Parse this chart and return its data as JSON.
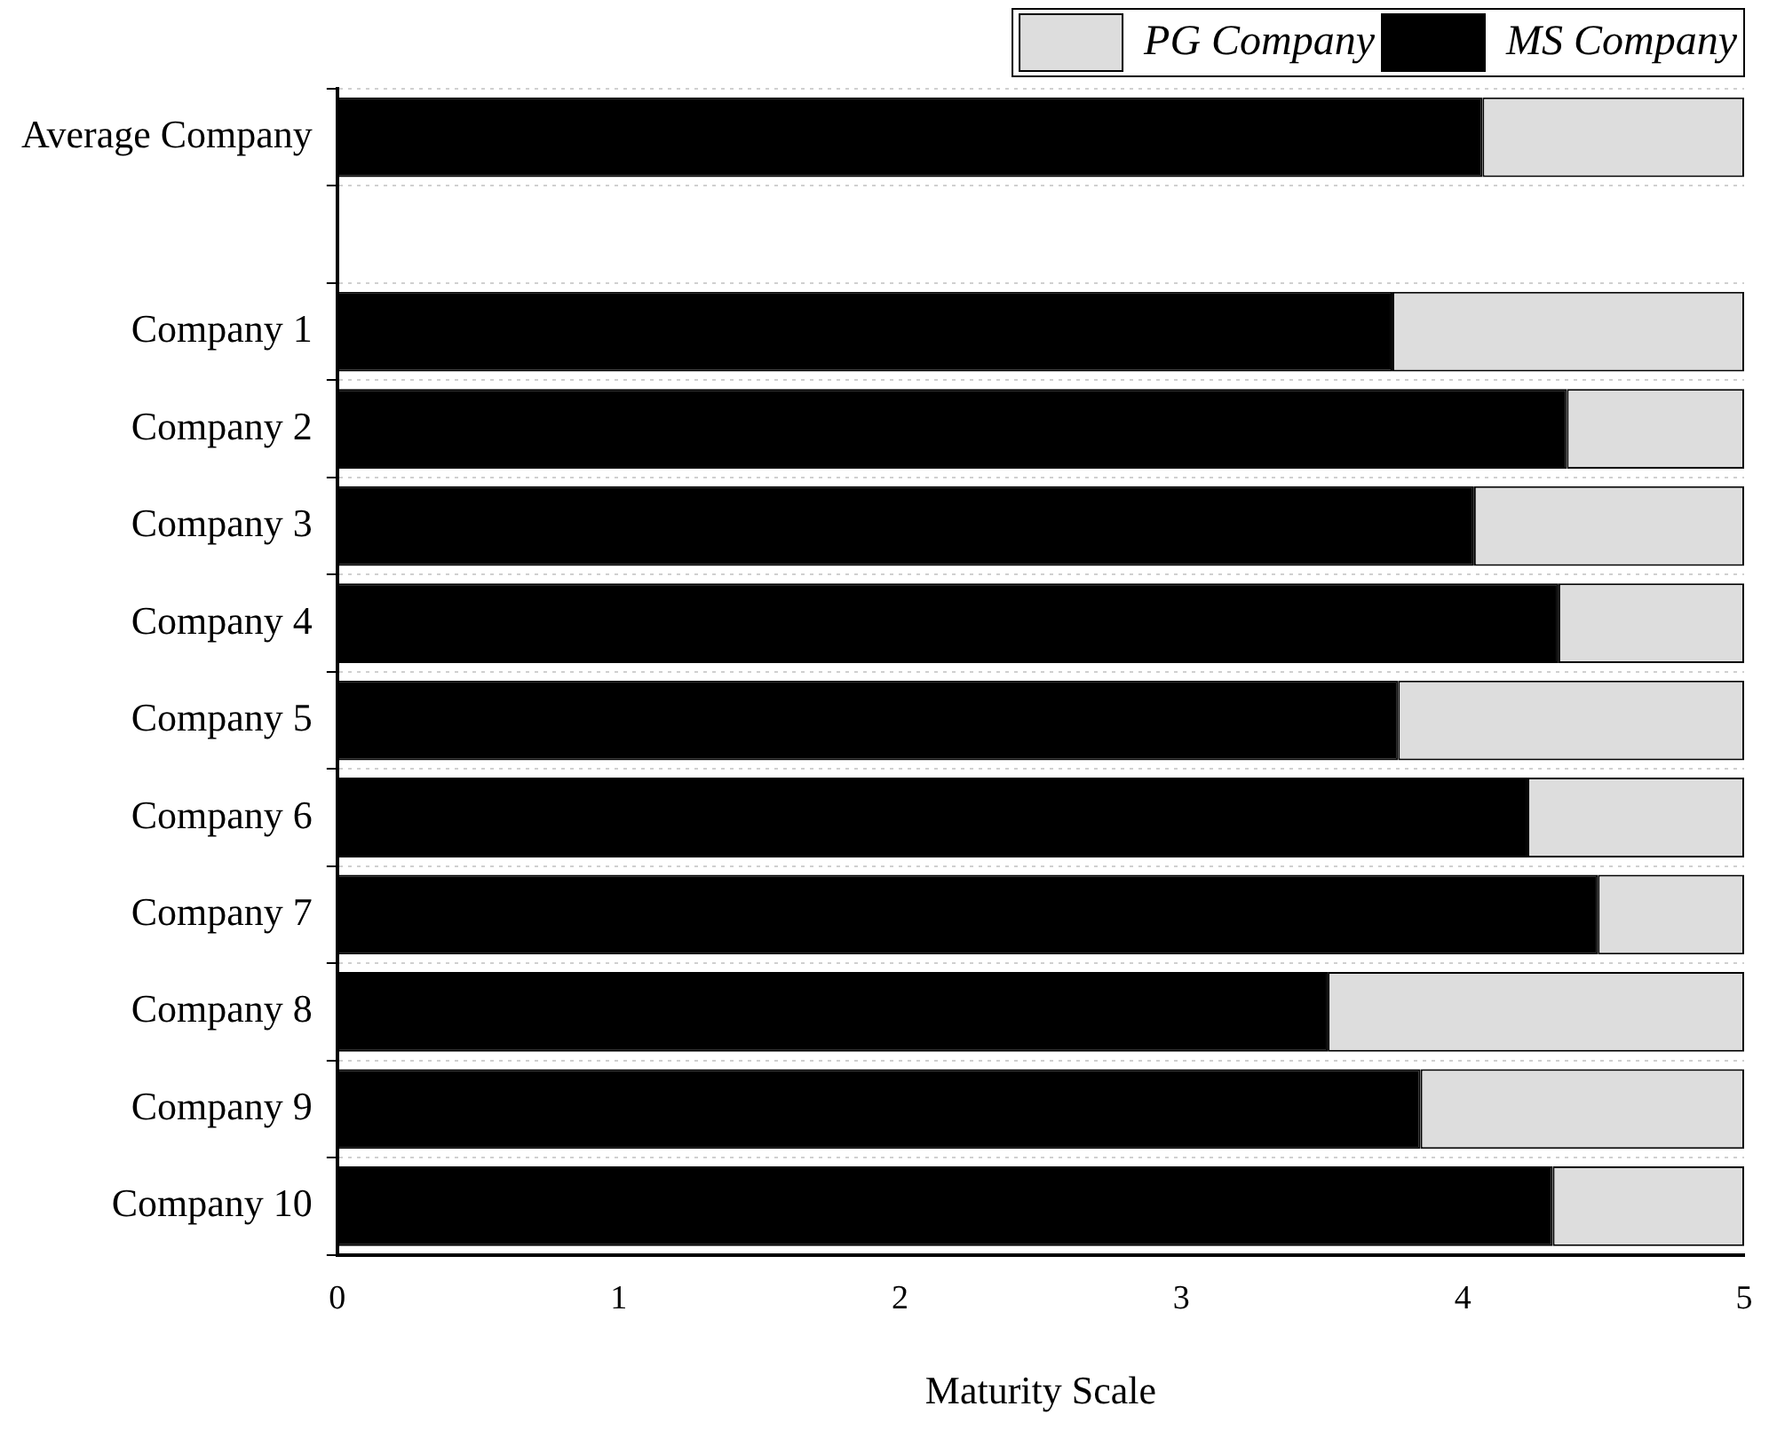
{
  "chart_data": {
    "type": "bar",
    "orientation": "horizontal",
    "stacked": true,
    "xlabel": "Maturity Scale",
    "categories": [
      "Average Company",
      null,
      "Company 1",
      "Company 2",
      "Company 3",
      "Company 4",
      "Company 5",
      "Company 6",
      "Company 7",
      "Company 8",
      "Company 9",
      "Company 10"
    ],
    "series": [
      {
        "name": "MS Company",
        "color": "#000000",
        "values": [
          4.07,
          null,
          3.75,
          4.37,
          4.04,
          4.34,
          3.77,
          4.23,
          4.48,
          3.52,
          3.85,
          4.32
        ]
      },
      {
        "name": "PG Company",
        "color": "#dddddd",
        "values": [
          0.93,
          null,
          1.25,
          0.63,
          0.96,
          0.66,
          1.23,
          0.77,
          0.52,
          1.48,
          1.15,
          0.68
        ]
      }
    ],
    "xlim": [
      0,
      5
    ],
    "xticks": [
      0,
      1,
      2,
      3,
      4,
      5
    ],
    "grid": "y",
    "legend": "top right"
  }
}
